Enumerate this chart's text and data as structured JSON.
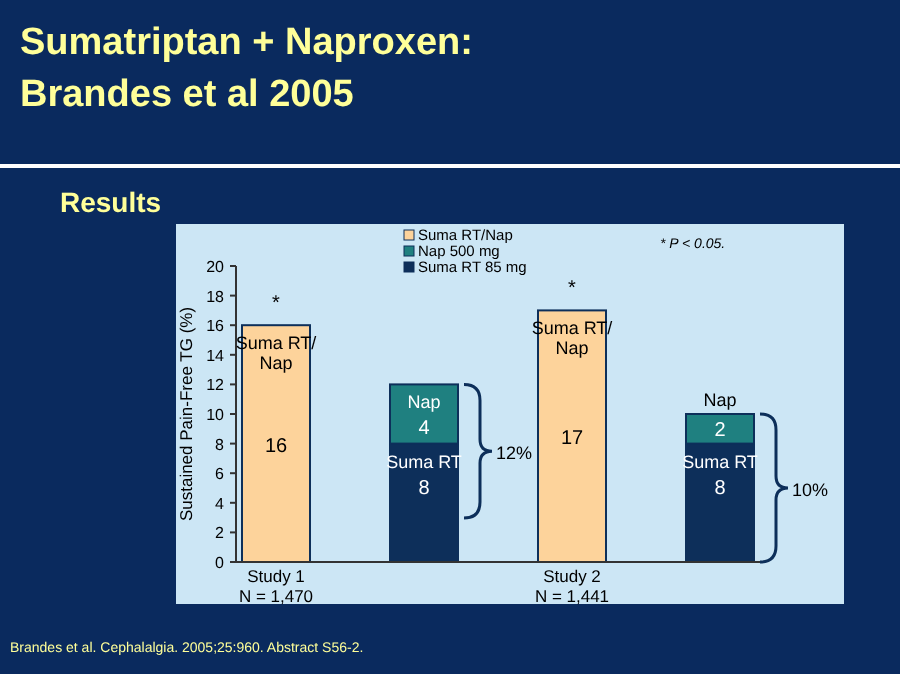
{
  "chart_data": {
    "type": "bar",
    "title": "Sumatriptan + Naproxen:\nBrandes et al 2005",
    "subtitle": "Results",
    "ylabel": "Sustained Pain-Free TG (%)",
    "categories": [
      "Study 1\nN = 1,470",
      null,
      "Study 2\nN = 1,441",
      null
    ],
    "stacked": true,
    "series": [
      {
        "name": "Suma RT 85 mg",
        "color": "#0d2f5a",
        "values": [
          null,
          8,
          null,
          8
        ],
        "value_labels": [
          null,
          "8",
          null,
          "8"
        ]
      },
      {
        "name": "Nap 500 mg",
        "color": "#1f8080",
        "values": [
          null,
          4,
          null,
          2
        ],
        "value_labels": [
          null,
          "4",
          null,
          "2"
        ]
      },
      {
        "name": "Suma RT/Nap",
        "color": "#fdd39b",
        "values": [
          16,
          null,
          17,
          null
        ],
        "value_labels": [
          "16",
          null,
          "17",
          null
        ]
      }
    ],
    "ylim": [
      0,
      20
    ],
    "yticks": [
      0,
      2,
      4,
      6,
      8,
      10,
      12,
      14,
      16,
      18,
      20
    ],
    "legend": "top",
    "annotations": [
      {
        "text": "*",
        "x": "Study 1\nN = 1,470",
        "y": 16
      },
      {
        "text": "*",
        "x": "Study 2\nN = 1,441",
        "y": 17
      },
      "Suma RT/\nNap",
      "Nap",
      "Suma RT",
      "Suma RT/\nNap",
      "Nap",
      "Suma RT",
      "12%",
      "10%",
      "* P < 0.05.",
      "Brandes et al. Cephalalgia. 2005;25:960. Abstract S56-2."
    ]
  }
}
